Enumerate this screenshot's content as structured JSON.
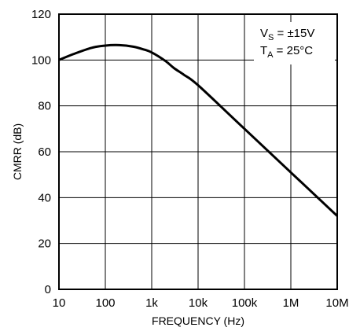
{
  "chart_data": {
    "type": "line",
    "xlabel": "FREQUENCY (Hz)",
    "ylabel": "CMRR (dB)",
    "x_scale": "log",
    "xlim": [
      10,
      10000000
    ],
    "ylim": [
      0,
      120
    ],
    "grid": true,
    "x_ticks": [
      {
        "value": 10,
        "label": "10"
      },
      {
        "value": 100,
        "label": "100"
      },
      {
        "value": 1000,
        "label": "1k"
      },
      {
        "value": 10000,
        "label": "10k"
      },
      {
        "value": 100000,
        "label": "100k"
      },
      {
        "value": 1000000,
        "label": "1M"
      },
      {
        "value": 10000000,
        "label": "10M"
      }
    ],
    "y_ticks": [
      0,
      20,
      40,
      60,
      80,
      100,
      120
    ],
    "annotation": {
      "line1": {
        "main": "V",
        "sub": "S",
        "rest": " = ±15V"
      },
      "line2": {
        "main": "T",
        "sub": "A",
        "rest": " = 25°C"
      }
    },
    "series": [
      {
        "x": [
          10,
          20,
          50,
          100,
          200,
          400,
          700,
          1000,
          2000,
          3000,
          5000,
          10000,
          100000,
          1000000,
          10000000
        ],
        "y": [
          100,
          102.5,
          105.3,
          106.3,
          106.5,
          105.8,
          104.5,
          103.3,
          99.5,
          96.5,
          93.5,
          89,
          70,
          51,
          32
        ]
      }
    ]
  }
}
